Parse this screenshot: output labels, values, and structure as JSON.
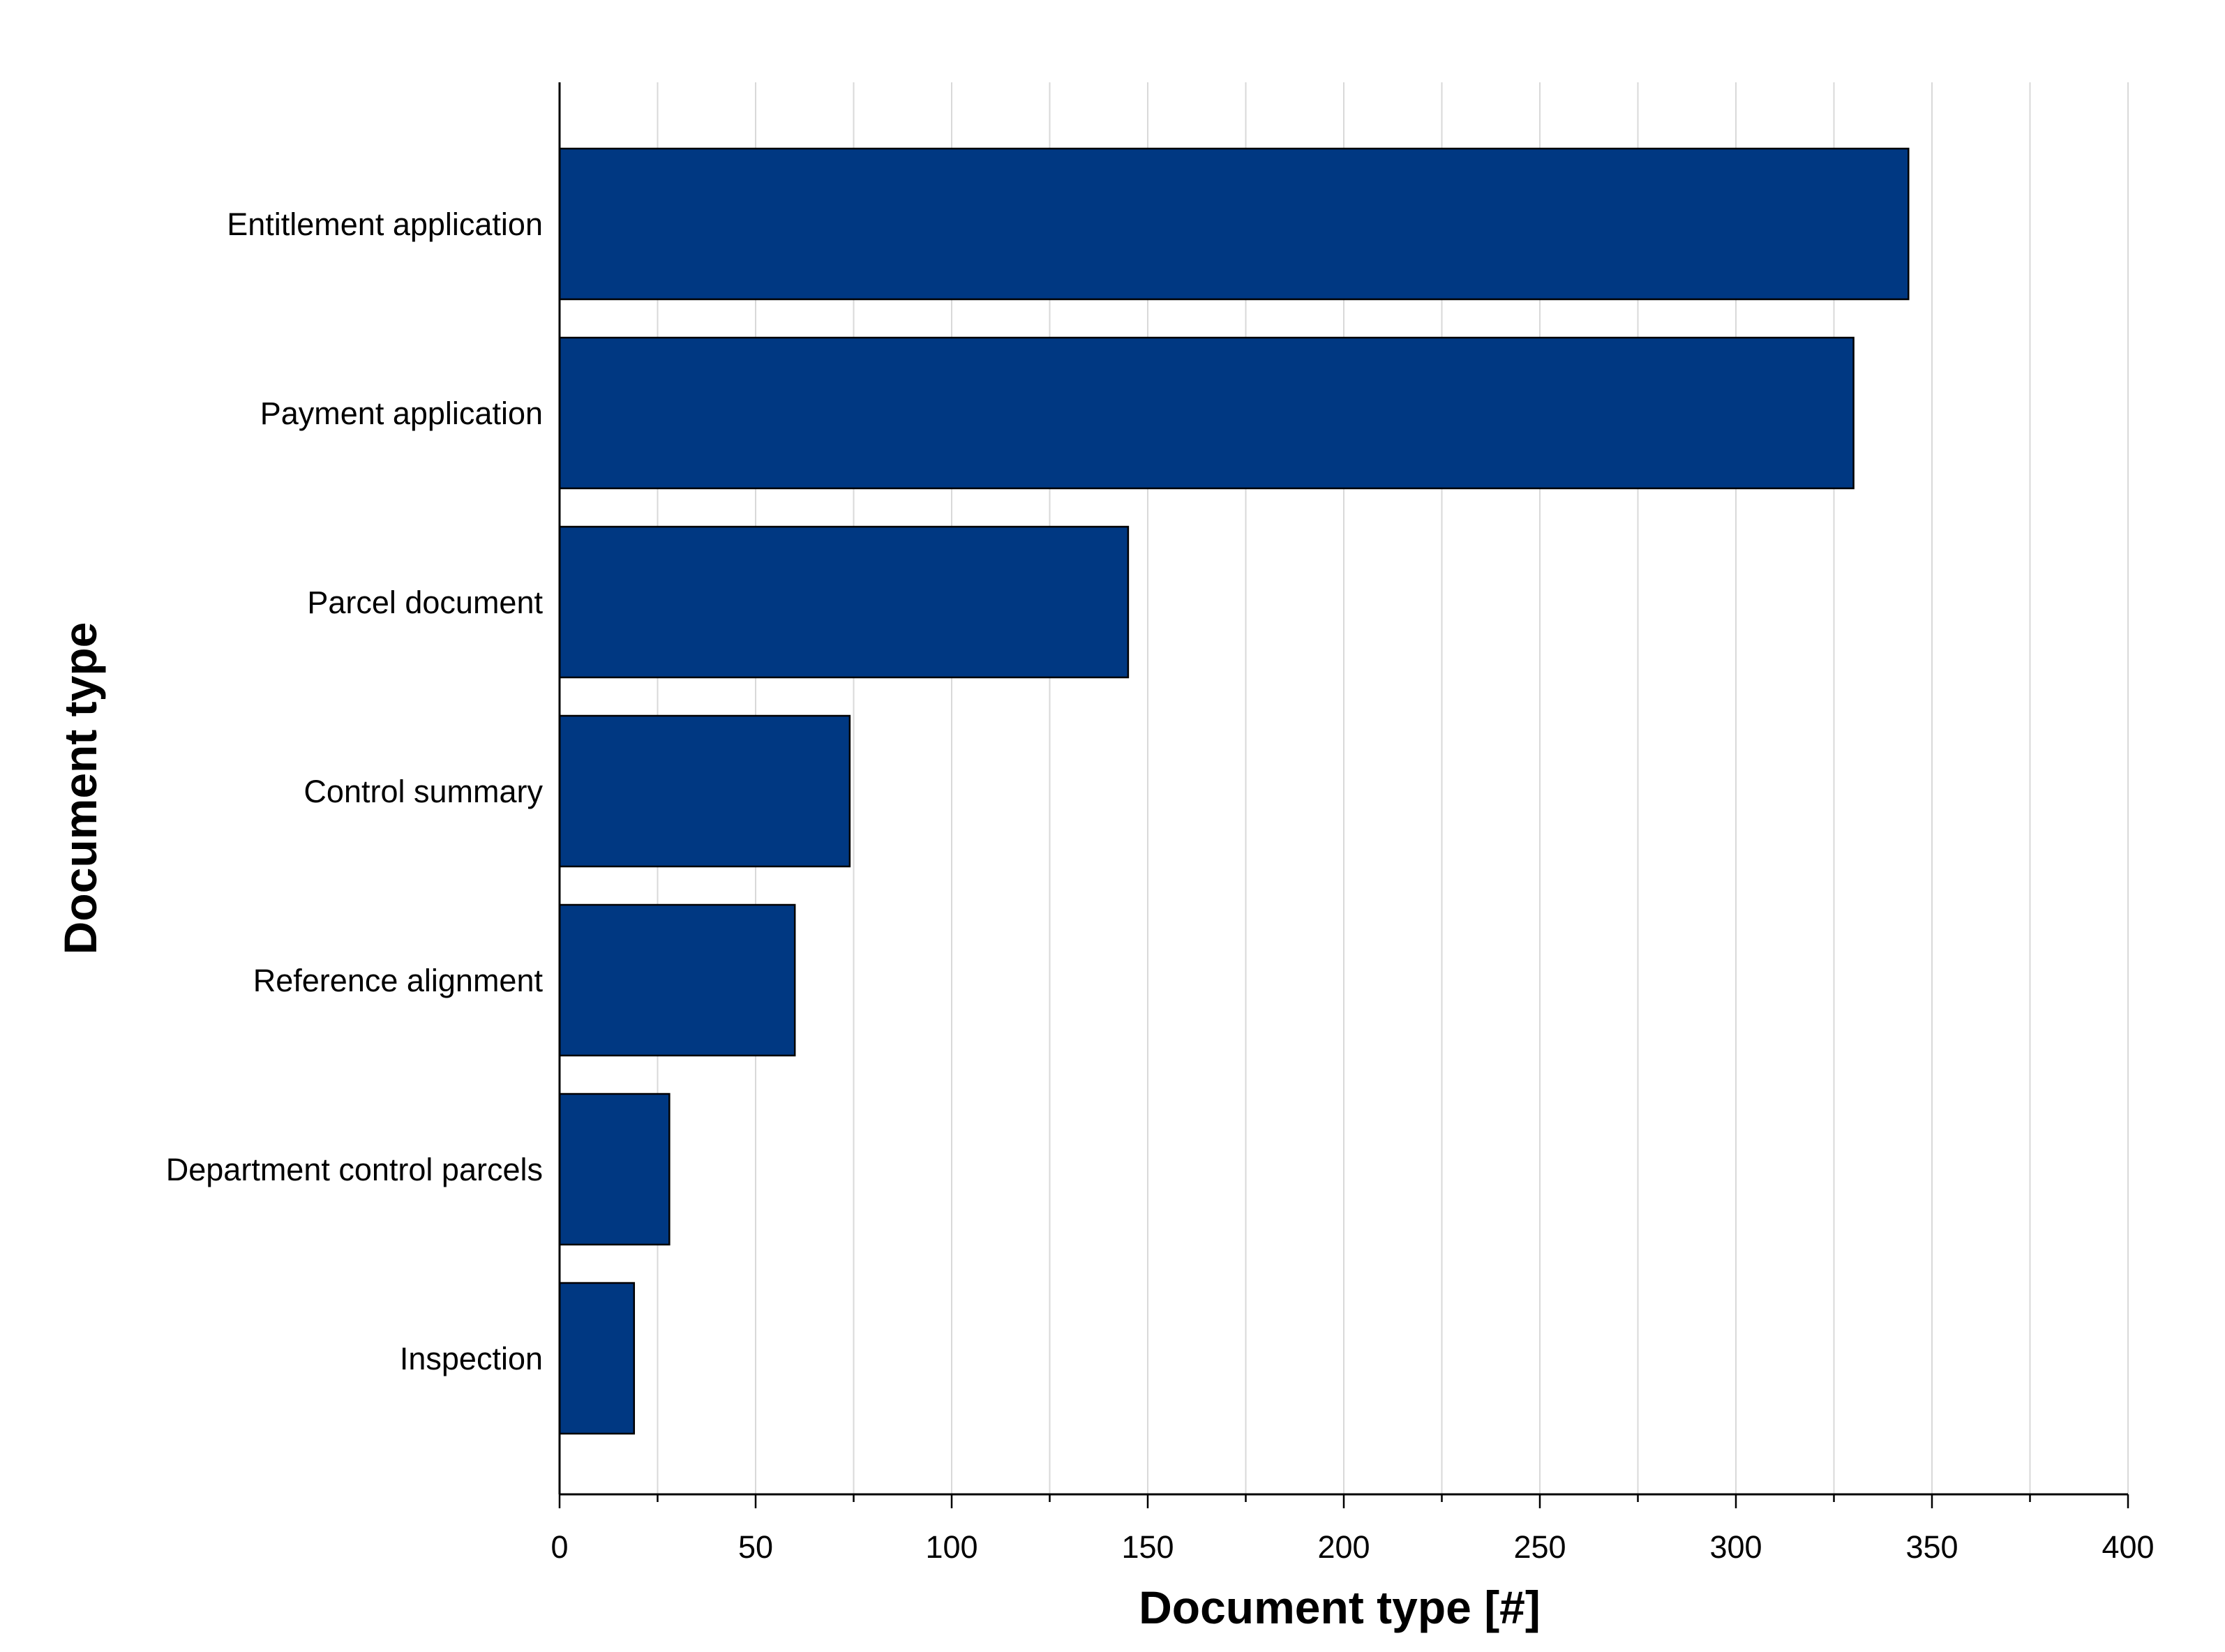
{
  "chart_data": {
    "type": "bar",
    "orientation": "horizontal",
    "categories": [
      "Entitlement application",
      "Payment application",
      "Parcel document",
      "Control summary",
      "Reference alignment",
      "Department control parcels",
      "Inspection"
    ],
    "values": [
      344,
      330,
      145,
      74,
      60,
      28,
      19
    ],
    "xlabel": "Document type [#]",
    "ylabel": "Document type",
    "xlim": [
      0,
      400
    ],
    "xticks": [
      0,
      50,
      100,
      150,
      200,
      250,
      300,
      350,
      400
    ],
    "grid": "vertical",
    "legend": "none",
    "bar_color": "#003882",
    "bar_edge_color": "#000000",
    "grid_color": "#d9d9d9"
  }
}
